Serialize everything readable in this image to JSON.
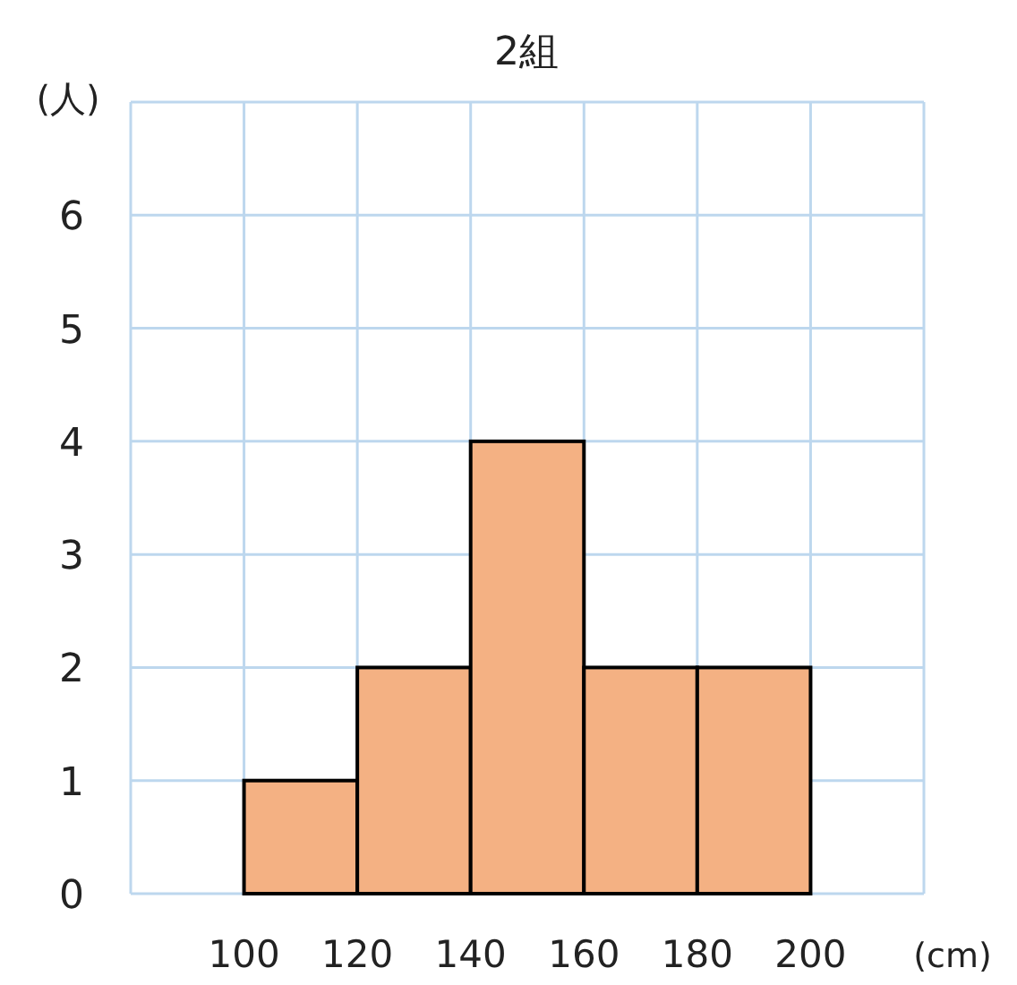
{
  "chart_data": {
    "type": "histogram",
    "title": "2組",
    "ylabel": "(人)",
    "xlabel": "(cm)",
    "bins": [
      100,
      120,
      140,
      160,
      180,
      200
    ],
    "values": [
      1,
      2,
      4,
      2,
      2
    ],
    "color": "#f4b183",
    "xlim": [
      80,
      220
    ],
    "xticks": [
      {
        "value": 80,
        "label": null
      },
      100,
      120,
      140,
      160,
      180,
      200,
      {
        "value": 220,
        "label": null
      }
    ],
    "ylim": [
      0,
      7
    ],
    "yticks": [
      0,
      1,
      2,
      3,
      4,
      5,
      6,
      {
        "value": 7,
        "label": null
      }
    ],
    "grid": true
  }
}
